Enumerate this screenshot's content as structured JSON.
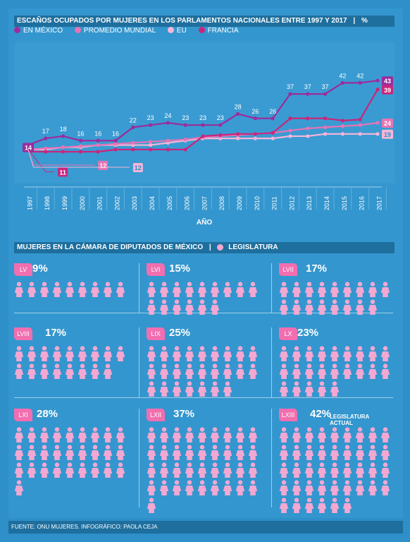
{
  "header1": {
    "title": "ESCAÑOS OCUPADOS POR MUJERES EN LOS PARLAMENTOS NACIONALES ENTRE 1997 Y 2017",
    "sep": "|",
    "unit": "%"
  },
  "legend": [
    {
      "label": "EN MÉXICO",
      "color": "#9B2C9D"
    },
    {
      "label": "PROMEDIO MUNDIAL",
      "color": "#E674B5"
    },
    {
      "label": "EU",
      "color": "#F7B5D8"
    },
    {
      "label": "FRANCIA",
      "color": "#C8267C"
    }
  ],
  "chart_data": {
    "type": "line",
    "title": "ESCAÑOS OCUPADOS POR MUJERES EN LOS PARLAMENTOS NACIONALES ENTRE 1997 Y 2017",
    "xlabel": "AÑO",
    "ylabel": "",
    "x": [
      1997,
      1998,
      1999,
      2000,
      2001,
      2002,
      2003,
      2004,
      2005,
      2006,
      2007,
      2008,
      2009,
      2010,
      2011,
      2012,
      2013,
      2014,
      2015,
      2016,
      2017
    ],
    "ylim": [
      0,
      45
    ],
    "series": [
      {
        "name": "EN MÉXICO",
        "color": "#9B2C9D",
        "values": [
          14,
          17,
          18,
          16,
          16,
          16,
          22,
          23,
          24,
          23,
          23,
          23,
          28,
          26,
          26,
          37,
          37,
          37,
          42,
          42,
          43
        ],
        "labeled": [
          1,
          1,
          1,
          1,
          1,
          1,
          1,
          1,
          1,
          1,
          1,
          1,
          1,
          1,
          1,
          1,
          1,
          1,
          1,
          1,
          1
        ]
      },
      {
        "name": "PROMEDIO MUNDIAL",
        "color": "#E674B5",
        "values": [
          12,
          12.5,
          13,
          13.5,
          14,
          14.5,
          15,
          15.5,
          16,
          16.5,
          17.5,
          18,
          18.5,
          19,
          19.5,
          20.5,
          21.5,
          22,
          22.5,
          23,
          24
        ]
      },
      {
        "name": "EU",
        "color": "#F7B5D8",
        "values": [
          12,
          12,
          13,
          13,
          14,
          14,
          14,
          14,
          15,
          16,
          17,
          17,
          17,
          17,
          17,
          18,
          18,
          19,
          19,
          19,
          19
        ]
      },
      {
        "name": "FRANCIA",
        "color": "#C8267C",
        "values": [
          11,
          11,
          11,
          11,
          11,
          12,
          12,
          12,
          12,
          12,
          18,
          18.5,
          19,
          19,
          19.5,
          26,
          26,
          26,
          25,
          25.5,
          39
        ]
      }
    ],
    "callouts": [
      {
        "series": "EN MÉXICO",
        "text": "14"
      },
      {
        "series": "FRANCIA",
        "text": "11"
      },
      {
        "series": "PROMEDIO MUNDIAL",
        "text": "12"
      },
      {
        "series": "EU",
        "text": "12"
      },
      {
        "series": "EN MÉXICO",
        "text": "43"
      },
      {
        "series": "FRANCIA",
        "text": "39"
      },
      {
        "series": "PROMEDIO MUNDIAL",
        "text": "24"
      },
      {
        "series": "EU",
        "text": "19"
      }
    ]
  },
  "header2": {
    "title": "MUJERES EN LA CÁMARA DE DIPUTADOS DE MÉXICO",
    "sep": "|",
    "legend_label": "LEGISLATURA"
  },
  "legislaturas": [
    {
      "name": "LV",
      "pct": "9%",
      "women": 9
    },
    {
      "name": "LVI",
      "pct": "15%",
      "women": 15
    },
    {
      "name": "LVII",
      "pct": "17%",
      "women": 17
    },
    {
      "name": "LVIII",
      "pct": "17%",
      "women": 17
    },
    {
      "name": "LIX",
      "pct": "25%",
      "women": 25
    },
    {
      "name": "LX",
      "pct": "23%",
      "women": 23
    },
    {
      "name": "LXI",
      "pct": "28%",
      "women": 28
    },
    {
      "name": "LXII",
      "pct": "37%",
      "women": 37
    },
    {
      "name": "LXIII",
      "pct": "42%",
      "women": 42
    }
  ],
  "current_label": "LEGISLATURA ACTUAL",
  "colors": {
    "figure": "#F3A8D2",
    "line": "#9ED0EC",
    "panel": "#3496CE",
    "header": "#1E6F9E"
  },
  "footer": "FUENTE: ONU MUJERES. INFOGRÁFICO: PAOLA CEJA"
}
